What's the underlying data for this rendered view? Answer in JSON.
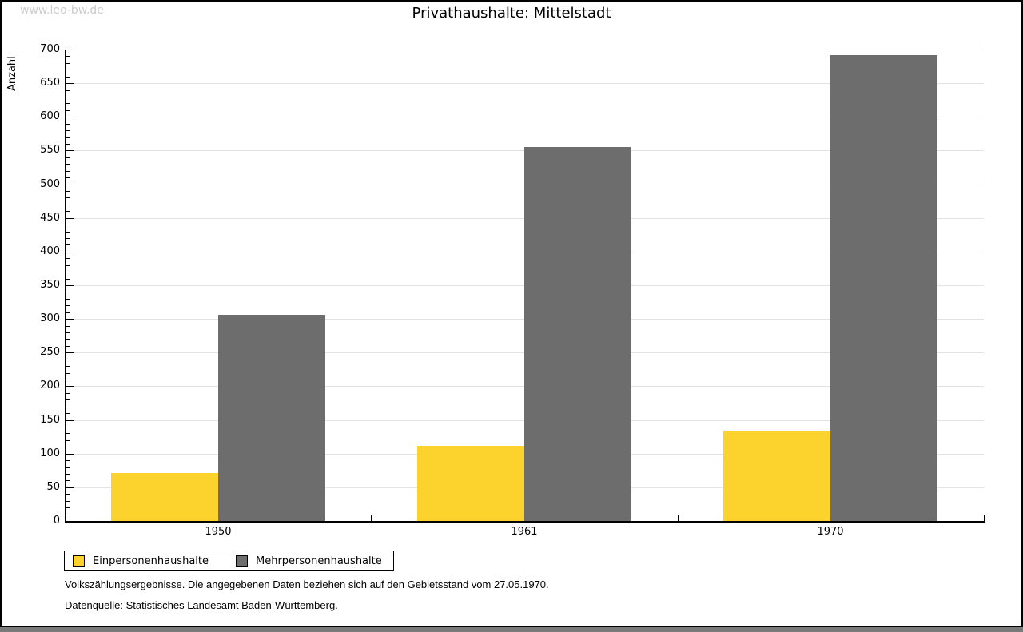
{
  "watermark": "www.leo-bw.de",
  "chart_data": {
    "type": "bar",
    "title": "Privathaushalte: Mittelstadt",
    "xlabel": "",
    "ylabel": "Anzahl",
    "categories": [
      "1950",
      "1961",
      "1970"
    ],
    "series": [
      {
        "name": "Einpersonenhaushalte",
        "color": "#fcd32d",
        "values": [
          71,
          112,
          134
        ]
      },
      {
        "name": "Mehrpersonenhaushalte",
        "color": "#6d6d6d",
        "values": [
          306,
          555,
          692
        ]
      }
    ],
    "ylim": [
      0,
      700
    ],
    "ytick_step": 50,
    "yminor_step": 10,
    "grid": true,
    "legend_position": "bottom-left"
  },
  "footer": {
    "note": "Volkszählungsergebnisse. Die angegebenen Daten beziehen sich auf den Gebietsstand vom 27.05.1970.",
    "source": "Datenquelle: Statistisches Landesamt Baden-Württemberg."
  }
}
